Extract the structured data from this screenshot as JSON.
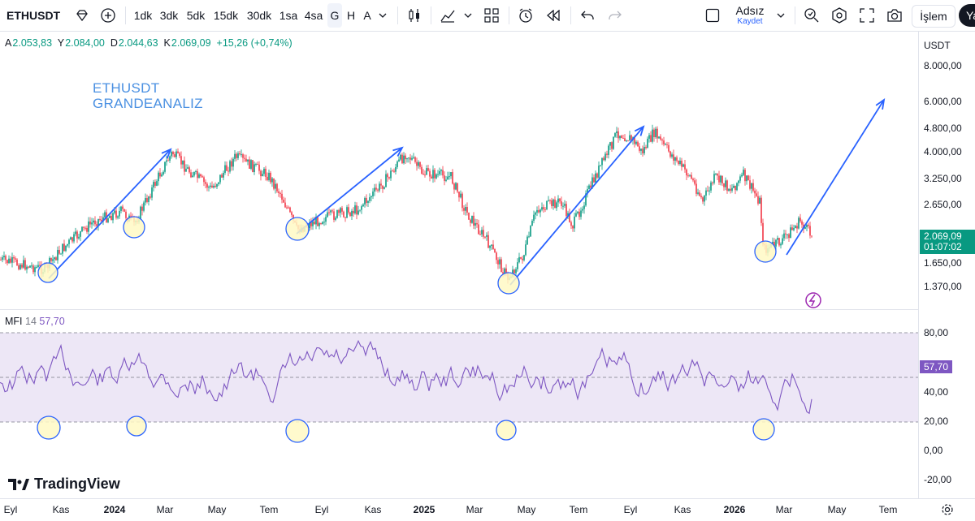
{
  "toolbar": {
    "symbol": "ETHUSDT",
    "intervals": [
      "1dk",
      "3dk",
      "5dk",
      "15dk",
      "30dk",
      "1sa",
      "4sa",
      "G",
      "H",
      "A"
    ],
    "selected_interval": "G",
    "layout_name": "Adsız",
    "layout_sub": "Kaydet",
    "trade_label": "İşlem",
    "publish_label": "Ya"
  },
  "ohlc": {
    "a_label": "A",
    "a_value": "2.053,83",
    "y_label": "Y",
    "y_value": "2.084,00",
    "d_label": "D",
    "d_value": "2.044,63",
    "k_label": "K",
    "k_value": "2.069,09",
    "change": "+15,26 (+0,74%)"
  },
  "watermark": {
    "line1": "ETHUSDT",
    "line2": "GRANDEANALIZ"
  },
  "price_axis": {
    "currency": "USDT",
    "labels": [
      "8.000,00",
      "6.000,00",
      "4.800,00",
      "4.000,00",
      "3.250,00",
      "2.650,00",
      "1.650,00",
      "1.370,00"
    ],
    "last_price": "2.069,09",
    "countdown": "01:07:02",
    "up_color": "#089981",
    "down_color": "#f23645"
  },
  "mfi": {
    "name": "MFI",
    "length": "14",
    "value": "57,70",
    "axis_labels": [
      "80,00",
      "40,00",
      "20,00",
      "0,00",
      "-20,00"
    ],
    "color": "#7e57c2"
  },
  "time_axis": {
    "labels": [
      "Eyl",
      "Kas",
      "2024",
      "Mar",
      "May",
      "Tem",
      "Eyl",
      "Kas",
      "2025",
      "Mar",
      "May",
      "Tem",
      "Eyl",
      "Kas",
      "2026",
      "Mar",
      "May",
      "Tem"
    ],
    "bold": [
      "2024",
      "2025",
      "2026"
    ]
  },
  "branding": {
    "name": "TradingView"
  },
  "colors": {
    "arrow": "#2962ff",
    "circle_fill": "#fff9c4",
    "mfi_band": "#ede7f6"
  }
}
